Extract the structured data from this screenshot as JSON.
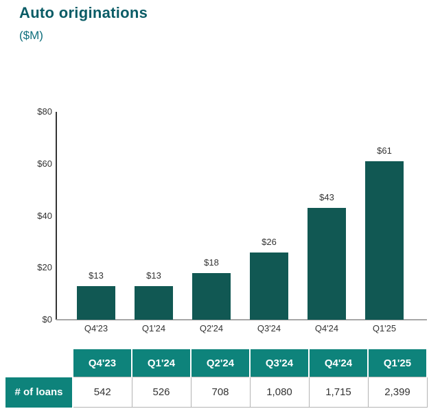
{
  "page": {
    "title": "Auto originations",
    "subtitle": "($M)"
  },
  "colors": {
    "title_teal": "#0a5c66",
    "subtitle_teal": "#0e6e7c",
    "bar_teal": "#115853",
    "table_header_teal": "#0e837b",
    "axis_line": "#333333",
    "baseline_gray": "#a6a6a6"
  },
  "chart_data": {
    "type": "bar",
    "title": "Auto originations",
    "unit_label": "($M)",
    "categories": [
      "Q4'23",
      "Q1'24",
      "Q2'24",
      "Q3'24",
      "Q4'24",
      "Q1'25"
    ],
    "values": [
      13,
      13,
      18,
      26,
      43,
      61
    ],
    "bar_labels": [
      "$13",
      "$13",
      "$18",
      "$26",
      "$43",
      "$61"
    ],
    "xlabel": "",
    "ylabel": "",
    "ylim": [
      0,
      80
    ],
    "grid": false,
    "legend": "none",
    "y_ticks": [
      {
        "value": 0,
        "label": "$0"
      },
      {
        "value": 20,
        "label": "$20"
      },
      {
        "value": 40,
        "label": "$40"
      },
      {
        "value": 60,
        "label": "$60"
      },
      {
        "value": 80,
        "label": "$80"
      }
    ]
  },
  "table": {
    "columns": [
      "Q4'23",
      "Q1'24",
      "Q2'24",
      "Q3'24",
      "Q4'24",
      "Q1'25"
    ],
    "rows": [
      {
        "label": "# of loans",
        "values": [
          "542",
          "526",
          "708",
          "1,080",
          "1,715",
          "2,399"
        ]
      }
    ]
  }
}
